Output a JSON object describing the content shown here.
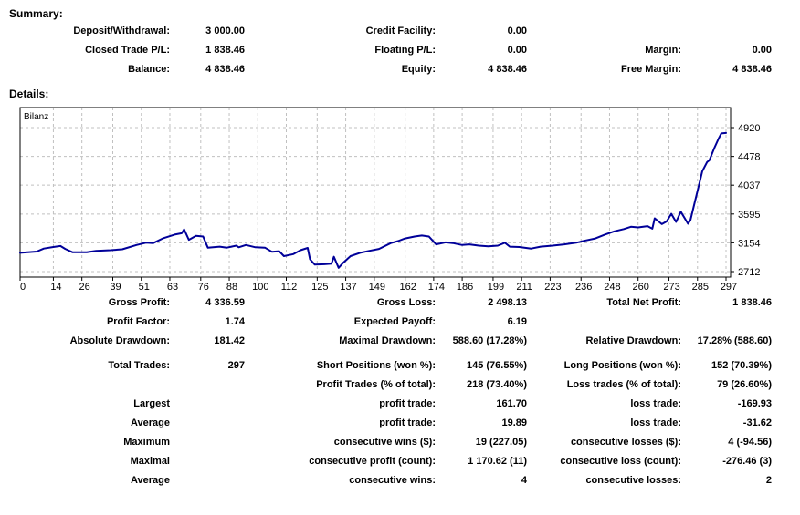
{
  "summary": {
    "heading": "Summary:",
    "rows": [
      {
        "cells": [
          {
            "label": "Deposit/Withdrawal:",
            "value": "3 000.00"
          },
          {
            "label": "Credit Facility:",
            "value": "0.00"
          },
          {
            "label": "",
            "value": ""
          }
        ]
      },
      {
        "cells": [
          {
            "label": "Closed Trade P/L:",
            "value": "1 838.46"
          },
          {
            "label": "Floating P/L:",
            "value": "0.00"
          },
          {
            "label": "Margin:",
            "value": "0.00"
          }
        ]
      },
      {
        "cells": [
          {
            "label": "Balance:",
            "value": "4 838.46"
          },
          {
            "label": "Equity:",
            "value": "4 838.46"
          },
          {
            "label": "Free Margin:",
            "value": "4 838.46"
          }
        ]
      }
    ]
  },
  "details": {
    "heading": "Details:"
  },
  "chart_data": {
    "type": "line",
    "title": "Bilanz",
    "xlabel": "",
    "ylabel": "",
    "xlim": [
      0,
      297
    ],
    "ylim": [
      2712,
      4920
    ],
    "x_ticks": [
      0,
      14,
      26,
      39,
      51,
      63,
      76,
      88,
      100,
      112,
      125,
      137,
      149,
      162,
      174,
      186,
      199,
      211,
      223,
      236,
      248,
      260,
      273,
      285,
      297
    ],
    "y_ticks": [
      2712,
      3154,
      3595,
      4037,
      4478,
      4920
    ],
    "grid": true,
    "legend_position": "top-left-inside",
    "line_color": "#000099",
    "grid_color": "#c0c0c0",
    "series": [
      {
        "name": "Bilanz",
        "x": [
          0,
          7,
          10,
          14,
          17,
          19,
          22,
          28,
          32,
          38,
          43,
          49,
          53,
          56,
          60,
          65,
          68,
          69,
          71,
          74,
          77,
          79,
          84,
          87,
          91,
          92,
          95,
          99,
          103,
          106,
          109,
          111,
          115,
          118,
          121,
          122,
          124,
          128,
          131,
          132,
          134,
          136,
          139,
          143,
          147,
          151,
          156,
          159,
          162,
          166,
          169,
          172,
          175,
          179,
          182,
          186,
          189,
          193,
          197,
          201,
          204,
          206,
          210,
          215,
          219,
          224,
          229,
          234,
          238,
          242,
          246,
          250,
          254,
          257,
          260,
          264,
          266,
          267,
          270,
          272,
          274,
          276,
          278,
          281,
          282,
          284,
          286,
          287,
          289,
          290,
          292,
          294,
          295,
          297
        ],
        "y": [
          3000,
          3020,
          3065,
          3090,
          3105,
          3060,
          3010,
          3010,
          3030,
          3040,
          3055,
          3120,
          3155,
          3150,
          3220,
          3280,
          3300,
          3360,
          3200,
          3260,
          3250,
          3080,
          3095,
          3080,
          3110,
          3085,
          3120,
          3085,
          3080,
          3015,
          3025,
          2950,
          2980,
          3040,
          3075,
          2900,
          2820,
          2825,
          2835,
          2940,
          2770,
          2850,
          2950,
          3000,
          3030,
          3060,
          3150,
          3180,
          3220,
          3250,
          3265,
          3250,
          3130,
          3160,
          3150,
          3120,
          3130,
          3110,
          3100,
          3110,
          3155,
          3095,
          3090,
          3065,
          3095,
          3110,
          3130,
          3155,
          3190,
          3220,
          3280,
          3330,
          3365,
          3400,
          3390,
          3410,
          3370,
          3530,
          3440,
          3480,
          3598,
          3473,
          3630,
          3446,
          3500,
          3800,
          4100,
          4250,
          4390,
          4420,
          4600,
          4760,
          4830,
          4838
        ]
      }
    ]
  },
  "stats": {
    "group1": [
      {
        "cells": [
          {
            "label": "Gross Profit:",
            "value": "4 336.59"
          },
          {
            "label": "Gross Loss:",
            "value": "2 498.13"
          },
          {
            "label": "Total Net Profit:",
            "value": "1 838.46"
          }
        ]
      },
      {
        "cells": [
          {
            "label": "Profit Factor:",
            "value": "1.74"
          },
          {
            "label": "Expected Payoff:",
            "value": "6.19"
          },
          {
            "label": "",
            "value": ""
          }
        ]
      },
      {
        "cells": [
          {
            "label": "Absolute Drawdown:",
            "value": "181.42"
          },
          {
            "label": "Maximal Drawdown:",
            "value": "588.60 (17.28%)"
          },
          {
            "label": "Relative Drawdown:",
            "value": "17.28% (588.60)"
          }
        ]
      }
    ],
    "group2": [
      {
        "cells": [
          {
            "label": "Total Trades:",
            "value": "297"
          },
          {
            "label": "Short Positions (won %):",
            "value": "145 (76.55%)"
          },
          {
            "label": "Long Positions (won %):",
            "value": "152 (70.39%)"
          }
        ]
      },
      {
        "cells": [
          {
            "label": "",
            "value": ""
          },
          {
            "label": "Profit Trades (% of total):",
            "value": "218 (73.40%)"
          },
          {
            "label": "Loss trades (% of total):",
            "value": "79 (26.60%)"
          }
        ]
      },
      {
        "cells": [
          {
            "label": "Largest",
            "value": ""
          },
          {
            "label": "profit trade:",
            "value": "161.70"
          },
          {
            "label": "loss trade:",
            "value": "-169.93"
          }
        ]
      },
      {
        "cells": [
          {
            "label": "Average",
            "value": ""
          },
          {
            "label": "profit trade:",
            "value": "19.89"
          },
          {
            "label": "loss trade:",
            "value": "-31.62"
          }
        ]
      },
      {
        "cells": [
          {
            "label": "Maximum",
            "value": ""
          },
          {
            "label": "consecutive wins ($):",
            "value": "19 (227.05)"
          },
          {
            "label": "consecutive losses ($):",
            "value": "4 (-94.56)"
          }
        ]
      },
      {
        "cells": [
          {
            "label": "Maximal",
            "value": ""
          },
          {
            "label": "consecutive profit (count):",
            "value": "1 170.62 (11)"
          },
          {
            "label": "consecutive loss (count):",
            "value": "-276.46 (3)"
          }
        ]
      },
      {
        "cells": [
          {
            "label": "Average",
            "value": ""
          },
          {
            "label": "consecutive wins:",
            "value": "4"
          },
          {
            "label": "consecutive losses:",
            "value": "2"
          }
        ]
      }
    ]
  }
}
